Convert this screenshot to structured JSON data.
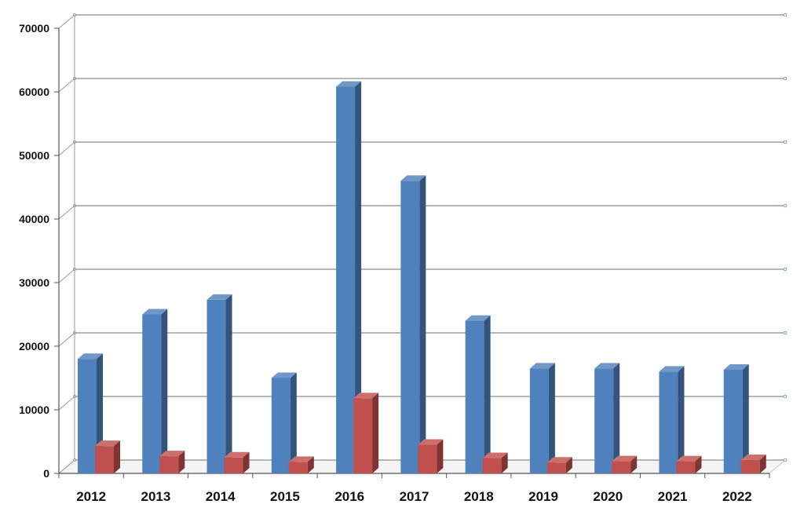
{
  "chart_data": {
    "type": "bar",
    "categories": [
      "2012",
      "2013",
      "2014",
      "2015",
      "2016",
      "2017",
      "2018",
      "2019",
      "2020",
      "2021",
      "2022"
    ],
    "series": [
      {
        "values": [
          18000,
          25000,
          27300,
          15000,
          60800,
          46000,
          24000,
          16500,
          16500,
          16000,
          16300
        ],
        "color": "#4f81bd"
      },
      {
        "values": [
          4300,
          2700,
          2500,
          1800,
          11800,
          4500,
          2400,
          1700,
          1900,
          1900,
          2100
        ],
        "color": "#c0504d"
      }
    ],
    "y_ticks": [
      "0",
      "10000",
      "20000",
      "30000",
      "40000",
      "50000",
      "60000",
      "70000"
    ],
    "ylim": [
      0,
      70000
    ],
    "grid": true,
    "legend": "none",
    "style": "3d-column"
  }
}
